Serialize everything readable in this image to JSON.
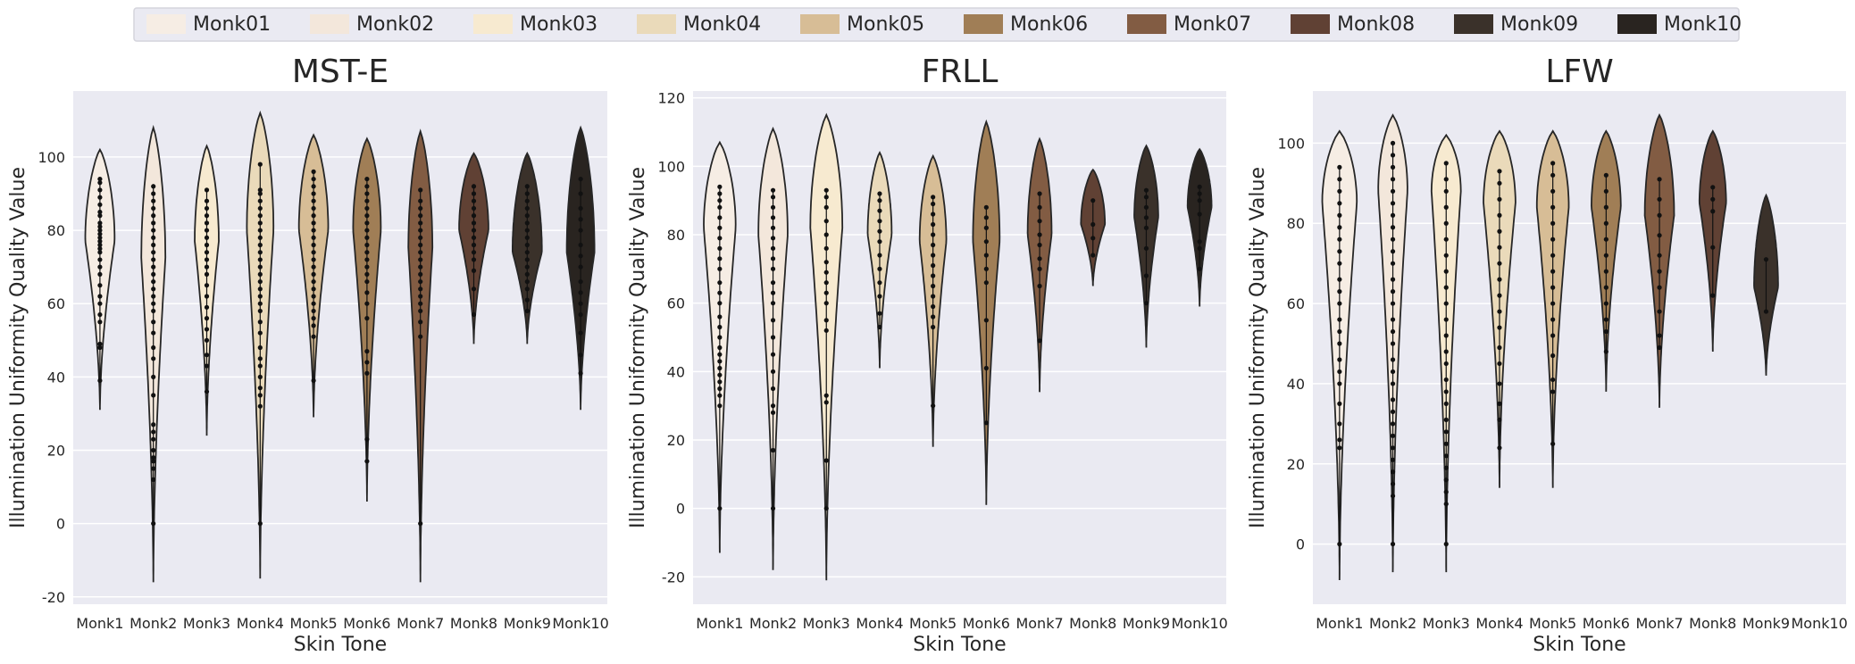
{
  "legend": {
    "items": [
      "Monk01",
      "Monk02",
      "Monk03",
      "Monk04",
      "Monk05",
      "Monk06",
      "Monk07",
      "Monk08",
      "Monk09",
      "Monk10"
    ],
    "colors": [
      "#f6ede4",
      "#f3e7db",
      "#f7ead0",
      "#eadaba",
      "#d7bd96",
      "#a07e56",
      "#825c43",
      "#604134",
      "#3a312a",
      "#292420"
    ],
    "placement": "top-center"
  },
  "chart_data": [
    {
      "type": "violin",
      "title": "MST-E",
      "xlabel": "Skin Tone",
      "ylabel": "Illumination Uniformity Quality Value",
      "categories": [
        "Monk1",
        "Monk2",
        "Monk3",
        "Monk4",
        "Monk5",
        "Monk6",
        "Monk7",
        "Monk8",
        "Monk9",
        "Monk10"
      ],
      "ylim": [
        -22,
        118
      ],
      "yticks": [
        -20,
        0,
        20,
        40,
        60,
        80,
        100
      ],
      "grid": true,
      "violins": [
        {
          "min": 31,
          "max": 102,
          "mode": 77,
          "width": 0.55,
          "points": [
            39,
            48,
            49,
            55,
            57,
            60,
            62,
            65,
            68,
            70,
            72,
            74,
            75,
            76,
            77,
            78,
            79,
            80,
            81,
            82,
            84,
            85,
            87,
            89,
            91,
            93,
            94
          ]
        },
        {
          "min": -16,
          "max": 108,
          "mode": 72,
          "width": 0.45,
          "points": [
            0,
            12,
            15,
            17,
            18,
            20,
            23,
            25,
            27,
            35,
            40,
            45,
            48,
            52,
            55,
            58,
            60,
            62,
            64,
            66,
            68,
            70,
            72,
            74,
            76,
            78,
            80,
            82,
            84,
            86,
            88,
            90,
            92
          ]
        },
        {
          "min": 24,
          "max": 103,
          "mode": 77,
          "width": 0.45,
          "points": [
            36,
            43,
            46,
            50,
            53,
            56,
            59,
            62,
            65,
            68,
            70,
            72,
            74,
            76,
            78,
            80,
            82,
            84,
            86,
            88,
            91
          ]
        },
        {
          "min": -15,
          "max": 112,
          "mode": 80,
          "width": 0.5,
          "points": [
            0,
            32,
            35,
            37,
            40,
            43,
            45,
            48,
            52,
            55,
            58,
            60,
            62,
            64,
            66,
            68,
            70,
            72,
            74,
            76,
            78,
            80,
            82,
            84,
            86,
            88,
            90,
            91,
            98
          ]
        },
        {
          "min": 29,
          "max": 106,
          "mode": 80,
          "width": 0.55,
          "points": [
            39,
            51,
            54,
            56,
            58,
            60,
            62,
            64,
            66,
            68,
            70,
            72,
            74,
            76,
            78,
            80,
            82,
            84,
            86,
            88,
            90,
            92,
            94,
            96
          ]
        },
        {
          "min": 6,
          "max": 105,
          "mode": 80,
          "width": 0.52,
          "points": [
            17,
            23,
            41,
            44,
            47,
            56,
            60,
            63,
            66,
            68,
            70,
            72,
            74,
            76,
            78,
            80,
            82,
            84,
            86,
            88,
            90,
            92,
            94
          ]
        },
        {
          "min": -16,
          "max": 107,
          "mode": 75,
          "width": 0.45,
          "points": [
            0,
            51,
            55,
            58,
            60,
            62,
            64,
            66,
            68,
            70,
            72,
            74,
            76,
            78,
            80,
            82,
            84,
            86,
            88,
            91
          ]
        },
        {
          "min": 49,
          "max": 101,
          "mode": 80,
          "width": 0.55,
          "points": [
            57,
            64,
            69,
            72,
            74,
            76,
            78,
            80,
            82,
            84,
            86,
            88,
            90,
            92
          ]
        },
        {
          "min": 49,
          "max": 101,
          "mode": 74,
          "width": 0.55,
          "points": [
            58,
            61,
            64,
            66,
            68,
            70,
            72,
            74,
            76,
            78,
            80,
            82,
            84,
            86,
            88,
            90,
            92
          ]
        },
        {
          "min": 31,
          "max": 108,
          "mode": 74,
          "width": 0.52,
          "points": [
            41,
            46,
            52,
            57,
            60,
            63,
            66,
            70,
            73,
            76,
            80,
            83,
            86,
            90,
            94
          ]
        }
      ]
    },
    {
      "type": "violin",
      "title": "FRLL",
      "xlabel": "Skin Tone",
      "ylabel": "Illumination Uniformity Quality Value",
      "categories": [
        "Monk1",
        "Monk2",
        "Monk3",
        "Monk4",
        "Monk5",
        "Monk6",
        "Monk7",
        "Monk8",
        "Monk9",
        "Monk10"
      ],
      "ylim": [
        -28,
        122
      ],
      "yticks": [
        -20,
        0,
        20,
        40,
        60,
        80,
        100,
        120
      ],
      "grid": true,
      "violins": [
        {
          "min": -13,
          "max": 107,
          "mode": 82,
          "width": 0.6,
          "points": [
            0,
            30,
            33,
            35,
            37,
            39,
            41,
            43,
            45,
            47,
            50,
            53,
            56,
            60,
            63,
            66,
            70,
            73,
            76,
            79,
            82,
            85,
            88,
            90,
            92,
            94
          ]
        },
        {
          "min": -18,
          "max": 111,
          "mode": 80,
          "width": 0.55,
          "points": [
            0,
            17,
            28,
            30,
            35,
            40,
            45,
            50,
            55,
            60,
            63,
            66,
            70,
            73,
            76,
            79,
            82,
            85,
            88,
            91,
            93
          ]
        },
        {
          "min": -21,
          "max": 115,
          "mode": 82,
          "width": 0.6,
          "points": [
            0,
            14,
            31,
            33,
            52,
            55,
            60,
            63,
            66,
            69,
            72,
            76,
            80,
            84,
            88,
            91,
            93
          ]
        },
        {
          "min": 41,
          "max": 104,
          "mode": 80,
          "width": 0.45,
          "points": [
            53,
            57,
            62,
            66,
            70,
            74,
            78,
            81,
            84,
            87,
            90,
            92
          ]
        },
        {
          "min": 18,
          "max": 103,
          "mode": 78,
          "width": 0.5,
          "points": [
            30,
            53,
            56,
            59,
            62,
            65,
            68,
            71,
            74,
            77,
            80,
            83,
            86,
            89,
            91
          ]
        },
        {
          "min": 1,
          "max": 113,
          "mode": 78,
          "width": 0.5,
          "points": [
            25,
            41,
            55,
            66,
            70,
            74,
            78,
            82,
            85,
            88
          ]
        },
        {
          "min": 34,
          "max": 108,
          "mode": 80,
          "width": 0.45,
          "points": [
            49,
            65,
            70,
            73,
            77,
            80,
            84,
            88,
            92
          ]
        },
        {
          "min": 65,
          "max": 99,
          "mode": 83,
          "width": 0.45,
          "points": [
            74,
            79,
            83,
            90
          ]
        },
        {
          "min": 47,
          "max": 106,
          "mode": 85,
          "width": 0.45,
          "points": [
            60,
            68,
            76,
            82,
            85,
            88,
            91,
            93
          ]
        },
        {
          "min": 59,
          "max": 105,
          "mode": 88,
          "width": 0.45,
          "points": [
            70,
            76,
            78,
            86,
            90,
            92,
            94
          ]
        }
      ]
    },
    {
      "type": "violin",
      "title": "LFW",
      "xlabel": "Skin Tone",
      "ylabel": "Illumination Uniformity Quality Value",
      "categories": [
        "Monk1",
        "Monk2",
        "Monk3",
        "Monk4",
        "Monk5",
        "Monk6",
        "Monk7",
        "Monk8",
        "Monk9",
        "Monk10"
      ],
      "ylim": [
        -15,
        113
      ],
      "yticks": [
        0,
        20,
        40,
        60,
        80,
        100
      ],
      "grid": true,
      "violins": [
        {
          "min": -9,
          "max": 103,
          "mode": 85,
          "width": 0.65,
          "points": [
            0,
            24,
            26,
            30,
            35,
            40,
            43,
            46,
            50,
            53,
            56,
            60,
            63,
            66,
            70,
            73,
            76,
            79,
            82,
            85,
            88,
            91,
            94
          ]
        },
        {
          "min": -7,
          "max": 107,
          "mode": 88,
          "width": 0.55,
          "points": [
            0,
            12,
            15,
            18,
            21,
            24,
            27,
            30,
            33,
            36,
            40,
            43,
            46,
            50,
            53,
            56,
            60,
            63,
            66,
            70,
            73,
            76,
            79,
            82,
            85,
            88,
            91,
            94,
            97,
            100
          ]
        },
        {
          "min": -7,
          "max": 102,
          "mode": 88,
          "width": 0.55,
          "points": [
            0,
            10,
            13,
            16,
            19,
            22,
            25,
            28,
            31,
            35,
            38,
            41,
            45,
            48,
            52,
            56,
            60,
            64,
            68,
            72,
            76,
            80,
            84,
            88,
            91,
            95
          ]
        },
        {
          "min": 14,
          "max": 103,
          "mode": 85,
          "width": 0.6,
          "points": [
            24,
            31,
            35,
            40,
            45,
            49,
            54,
            58,
            62,
            66,
            70,
            74,
            78,
            82,
            86,
            90,
            93
          ]
        },
        {
          "min": 14,
          "max": 103,
          "mode": 84,
          "width": 0.6,
          "points": [
            25,
            38,
            41,
            47,
            52,
            56,
            60,
            64,
            68,
            72,
            76,
            80,
            84,
            88,
            92,
            95
          ]
        },
        {
          "min": 38,
          "max": 103,
          "mode": 84,
          "width": 0.55,
          "points": [
            48,
            53,
            56,
            60,
            64,
            68,
            72,
            76,
            80,
            84,
            88,
            92
          ]
        },
        {
          "min": 34,
          "max": 107,
          "mode": 82,
          "width": 0.55,
          "points": [
            49,
            52,
            58,
            64,
            68,
            72,
            77,
            82,
            86,
            91
          ]
        },
        {
          "min": 48,
          "max": 103,
          "mode": 85,
          "width": 0.5,
          "points": [
            62,
            74,
            83,
            86,
            89
          ]
        },
        {
          "min": 42,
          "max": 87,
          "mode": 64,
          "width": 0.45,
          "points": [
            58,
            71
          ]
        },
        {
          "min": null,
          "max": null,
          "mode": null,
          "width": 0,
          "points": []
        }
      ]
    }
  ]
}
